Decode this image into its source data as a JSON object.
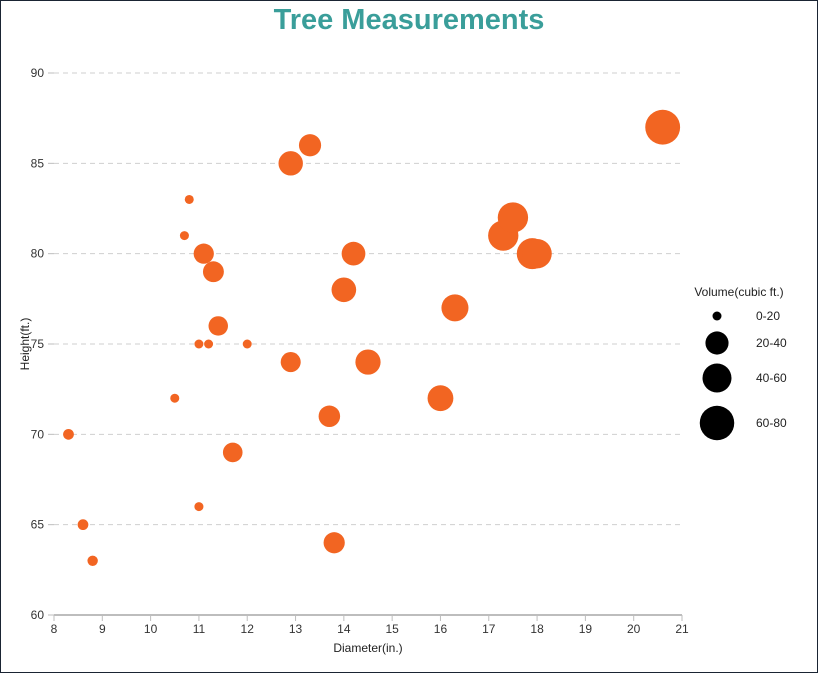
{
  "chart_data": {
    "type": "scatter",
    "title": "Tree Measurements",
    "xlabel": "Diameter(in.)",
    "ylabel": "Height(ft.)",
    "xlim": [
      8,
      21
    ],
    "ylim": [
      60,
      90
    ],
    "xticks": [
      8,
      9,
      10,
      11,
      12,
      13,
      14,
      15,
      16,
      17,
      18,
      19,
      20,
      21
    ],
    "yticks": [
      60,
      65,
      70,
      75,
      80,
      85,
      90
    ],
    "grid": "horizontal-dashed",
    "color": "#f26522",
    "size_encoding": "Volume(cubic ft.)",
    "legend": {
      "title": "Volume(cubic ft.)",
      "placement": "right",
      "entries": [
        {
          "label": "0-20",
          "volume": 10
        },
        {
          "label": "20-40",
          "volume": 30
        },
        {
          "label": "40-60",
          "volume": 50
        },
        {
          "label": "60-80",
          "volume": 75
        }
      ]
    },
    "points": [
      {
        "x": 8.3,
        "y": 70,
        "volume": 10.3
      },
      {
        "x": 8.6,
        "y": 65,
        "volume": 10.3
      },
      {
        "x": 8.8,
        "y": 63,
        "volume": 10.2
      },
      {
        "x": 10.5,
        "y": 72,
        "volume": 10.0
      },
      {
        "x": 10.7,
        "y": 81,
        "volume": 10.0
      },
      {
        "x": 10.8,
        "y": 83,
        "volume": 10.0
      },
      {
        "x": 11.0,
        "y": 66,
        "volume": 10.0
      },
      {
        "x": 11.0,
        "y": 75,
        "volume": 10.0
      },
      {
        "x": 11.1,
        "y": 80,
        "volume": 22.6
      },
      {
        "x": 11.2,
        "y": 75,
        "volume": 10.0
      },
      {
        "x": 11.3,
        "y": 79,
        "volume": 24.2
      },
      {
        "x": 11.4,
        "y": 76,
        "volume": 21.0
      },
      {
        "x": 11.7,
        "y": 69,
        "volume": 21.3
      },
      {
        "x": 12.0,
        "y": 75,
        "volume": 10.0
      },
      {
        "x": 12.9,
        "y": 74,
        "volume": 22.2
      },
      {
        "x": 12.9,
        "y": 85,
        "volume": 33.8
      },
      {
        "x": 13.3,
        "y": 86,
        "volume": 27.4
      },
      {
        "x": 13.7,
        "y": 71,
        "volume": 25.7
      },
      {
        "x": 13.8,
        "y": 64,
        "volume": 24.9
      },
      {
        "x": 14.0,
        "y": 78,
        "volume": 34.5
      },
      {
        "x": 14.2,
        "y": 80,
        "volume": 31.7
      },
      {
        "x": 14.5,
        "y": 74,
        "volume": 36.3
      },
      {
        "x": 16.0,
        "y": 72,
        "volume": 38.3
      },
      {
        "x": 16.3,
        "y": 77,
        "volume": 42.6
      },
      {
        "x": 17.3,
        "y": 81,
        "volume": 55.4
      },
      {
        "x": 17.5,
        "y": 82,
        "volume": 55.7
      },
      {
        "x": 17.9,
        "y": 80,
        "volume": 58.3
      },
      {
        "x": 18.0,
        "y": 80,
        "volume": 51.5
      },
      {
        "x": 20.6,
        "y": 87,
        "volume": 77.0
      }
    ]
  }
}
